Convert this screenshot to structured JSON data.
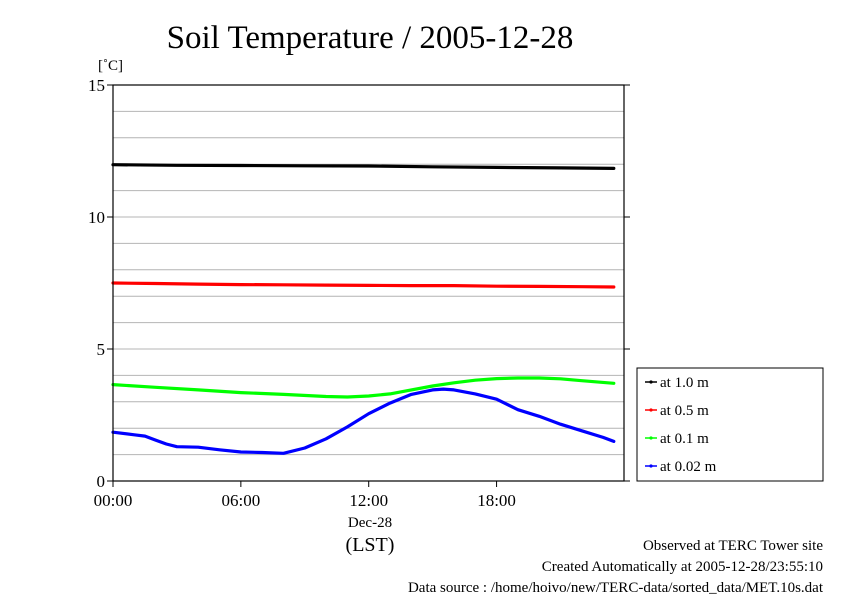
{
  "chart_data": {
    "type": "line",
    "title": "Soil Temperature / 2005-12-28",
    "ylabel": "[˚C]",
    "xlabel": "(LST)",
    "date_label": "Dec-28",
    "ylim": [
      0,
      15
    ],
    "xlim": [
      0,
      23.98
    ],
    "y_ticks": [
      "0",
      "5",
      "10",
      "15"
    ],
    "y_tick_values": [
      0,
      5,
      10,
      15
    ],
    "y_grid_step": 1,
    "x_ticks": [
      "00:00",
      "06:00",
      "12:00",
      "18:00"
    ],
    "x_tick_values": [
      0,
      6,
      12,
      18
    ],
    "grid": true,
    "legend_position": "right",
    "series": [
      {
        "name": "at 1.0 m",
        "color": "#000000",
        "x": [
          0,
          3,
          6,
          9,
          12,
          15,
          18,
          21,
          23.5
        ],
        "y": [
          11.98,
          11.96,
          11.95,
          11.94,
          11.93,
          11.9,
          11.88,
          11.86,
          11.84
        ]
      },
      {
        "name": "at 0.5 m",
        "color": "#ff0000",
        "x": [
          0,
          2,
          4,
          6,
          8,
          10,
          12,
          14,
          16,
          18,
          20,
          22,
          23.5
        ],
        "y": [
          7.5,
          7.48,
          7.46,
          7.44,
          7.43,
          7.42,
          7.41,
          7.4,
          7.4,
          7.38,
          7.37,
          7.36,
          7.35
        ]
      },
      {
        "name": "at 0.1 m",
        "color": "#00ff00",
        "x": [
          0,
          2,
          4,
          6,
          8,
          10,
          11,
          12,
          13,
          14,
          15,
          16,
          17,
          18,
          19,
          20,
          21,
          22,
          23.5
        ],
        "y": [
          3.65,
          3.55,
          3.45,
          3.35,
          3.28,
          3.2,
          3.18,
          3.22,
          3.3,
          3.45,
          3.6,
          3.72,
          3.82,
          3.88,
          3.9,
          3.9,
          3.87,
          3.8,
          3.7
        ]
      },
      {
        "name": "at 0.02 m",
        "color": "#0000ff",
        "x": [
          0,
          1,
          1.5,
          2,
          2.5,
          3,
          4,
          5,
          6,
          7,
          8,
          9,
          10,
          11,
          12,
          13,
          14,
          15,
          15.5,
          16,
          17,
          18,
          19,
          20,
          21,
          22,
          23,
          23.5
        ],
        "y": [
          1.85,
          1.75,
          1.7,
          1.55,
          1.4,
          1.3,
          1.28,
          1.18,
          1.1,
          1.08,
          1.05,
          1.25,
          1.6,
          2.05,
          2.55,
          2.95,
          3.28,
          3.45,
          3.48,
          3.45,
          3.3,
          3.1,
          2.7,
          2.45,
          2.15,
          1.9,
          1.65,
          1.5
        ]
      }
    ]
  },
  "footer": {
    "observed": "Observed at TERC Tower site",
    "created": "Created Automatically at 2005-12-28/23:55:10",
    "source": "Data source : /home/hoivo/new/TERC-data/sorted_data/MET.10s.dat"
  }
}
